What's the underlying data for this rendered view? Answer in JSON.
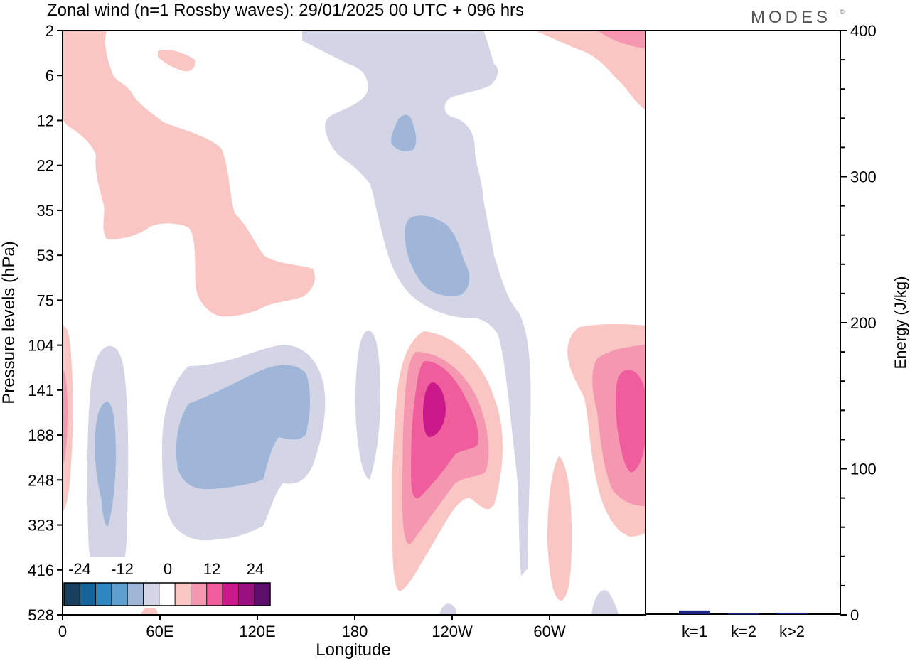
{
  "title": "Zonal wind (n=1 Rossby waves):  29/01/2025  00 UTC  + 096 hrs",
  "brand": "MODES",
  "brand_mark": "©",
  "chart_data": [
    {
      "type": "heatmap",
      "xlabel": "Longitude",
      "ylabel": "Pressure levels (hPa)",
      "x_ticks": [
        "0",
        "60E",
        "120E",
        "180",
        "120W",
        "60W"
      ],
      "y_ticks": [
        "2",
        "6",
        "12",
        "22",
        "35",
        "53",
        "75",
        "104",
        "141",
        "188",
        "248",
        "323",
        "416",
        "528"
      ],
      "y_scale": "level index (top = 2 hPa, bottom = 528 hPa)",
      "colorbar": {
        "tick_labels": [
          "-24",
          "-12",
          "0",
          "12",
          "24"
        ],
        "levels": [
          -30,
          -27,
          -24,
          -21,
          -18,
          -15,
          -12,
          -9,
          -6,
          -3,
          3,
          6,
          9,
          12,
          15,
          18,
          21,
          24,
          27,
          30
        ],
        "colors": [
          "#16405e",
          "#16659a",
          "#2b86c1",
          "#5e9fcd",
          "#9fb6d8",
          "#d3d5e7",
          "#ffffff",
          "#f9c6c3",
          "#f597b0",
          "#ef5d9d",
          "#ca198b",
          "#9b1080",
          "#5b0f6b"
        ]
      },
      "regions": [
        {
          "name": "pos-upper-west",
          "level": "3"
        },
        {
          "name": "pos-upper-small",
          "level": "3"
        },
        {
          "name": "pos-upper-east",
          "level": "3"
        },
        {
          "name": "pos-upper-east-inner",
          "level": "6"
        },
        {
          "name": "neg-upper-central",
          "level": "-3"
        },
        {
          "name": "neg-upper-core-1",
          "level": "-6"
        },
        {
          "name": "neg-upper-core-2",
          "level": "-6"
        },
        {
          "name": "pos-left-edge",
          "level": "3"
        },
        {
          "name": "pos-left-edge-inner",
          "level": "6"
        },
        {
          "name": "neg-lower-west",
          "level": "-3"
        },
        {
          "name": "neg-lower-west-core",
          "level": "-6"
        },
        {
          "name": "neg-lower-mid",
          "level": "-3"
        },
        {
          "name": "neg-lower-mid-core",
          "level": "-6"
        },
        {
          "name": "neg-lower-narrow",
          "level": "-3"
        },
        {
          "name": "pos-lower-central",
          "level": "3"
        },
        {
          "name": "pos-lower-central-6",
          "level": "6"
        },
        {
          "name": "pos-lower-central-9",
          "level": "9"
        },
        {
          "name": "pos-lower-central-12",
          "level": "12"
        },
        {
          "name": "pos-lower-east-small",
          "level": "3"
        },
        {
          "name": "pos-lower-east",
          "level": "3"
        },
        {
          "name": "pos-lower-east-6",
          "level": "6"
        },
        {
          "name": "pos-lower-east-9",
          "level": "9"
        },
        {
          "name": "neg-bottom-1",
          "level": "-3"
        },
        {
          "name": "neg-bottom-2",
          "level": "-3"
        },
        {
          "name": "pos-bottom-1",
          "level": "3"
        }
      ]
    },
    {
      "type": "bar",
      "categories": [
        "k=1",
        "k=2",
        "k>2"
      ],
      "values": [
        2.5,
        0.5,
        1.0
      ],
      "ylabel": "Energy (J/kg)",
      "ylim": [
        0,
        400
      ],
      "y_ticks": [
        0,
        100,
        200,
        300,
        400
      ],
      "bar_color": "#1a237e"
    }
  ]
}
